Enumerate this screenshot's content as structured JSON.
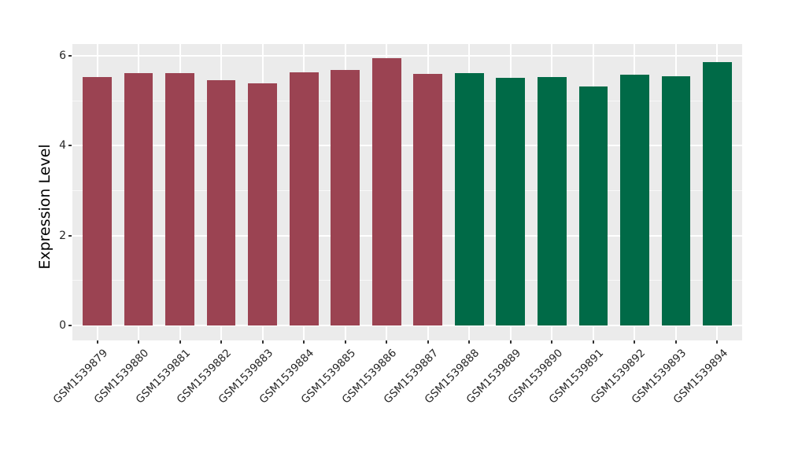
{
  "figure": {
    "background": "#FFFFFF",
    "panel_background": "#EBEBEB",
    "gridline_color": "#FFFFFF",
    "tick_mark_color": "#333333",
    "tick_label_color": "#262626",
    "axis_title_color": "#000000",
    "group_colors": {
      "red_group": "#9B4352",
      "green_group": "#006A47"
    }
  },
  "chart_data": {
    "type": "bar",
    "title": "",
    "xlabel": "",
    "ylabel": "Expression Level",
    "legend": "none",
    "grid": true,
    "x_label_rotation": 45,
    "y_ticks": [
      0,
      2,
      4,
      6
    ],
    "y_minor_ticks": [
      1,
      3,
      5
    ],
    "ylim": [
      0,
      6.26
    ],
    "ylim_display": [
      -0.33,
      6.26
    ],
    "categories": [
      "GSM1539879",
      "GSM1539880",
      "GSM1539881",
      "GSM1539882",
      "GSM1539883",
      "GSM1539884",
      "GSM1539885",
      "GSM1539886",
      "GSM1539887",
      "GSM1539888",
      "GSM1539889",
      "GSM1539890",
      "GSM1539891",
      "GSM1539892",
      "GSM1539893",
      "GSM1539894"
    ],
    "values": [
      5.52,
      5.61,
      5.61,
      5.46,
      5.39,
      5.63,
      5.68,
      5.95,
      5.6,
      5.62,
      5.5,
      5.52,
      5.32,
      5.57,
      5.54,
      5.86
    ],
    "bar_colors": [
      "#9B4352",
      "#9B4352",
      "#9B4352",
      "#9B4352",
      "#9B4352",
      "#9B4352",
      "#9B4352",
      "#9B4352",
      "#9B4352",
      "#006A47",
      "#006A47",
      "#006A47",
      "#006A47",
      "#006A47",
      "#006A47",
      "#006A47"
    ],
    "bar_width_fraction": 0.7
  }
}
